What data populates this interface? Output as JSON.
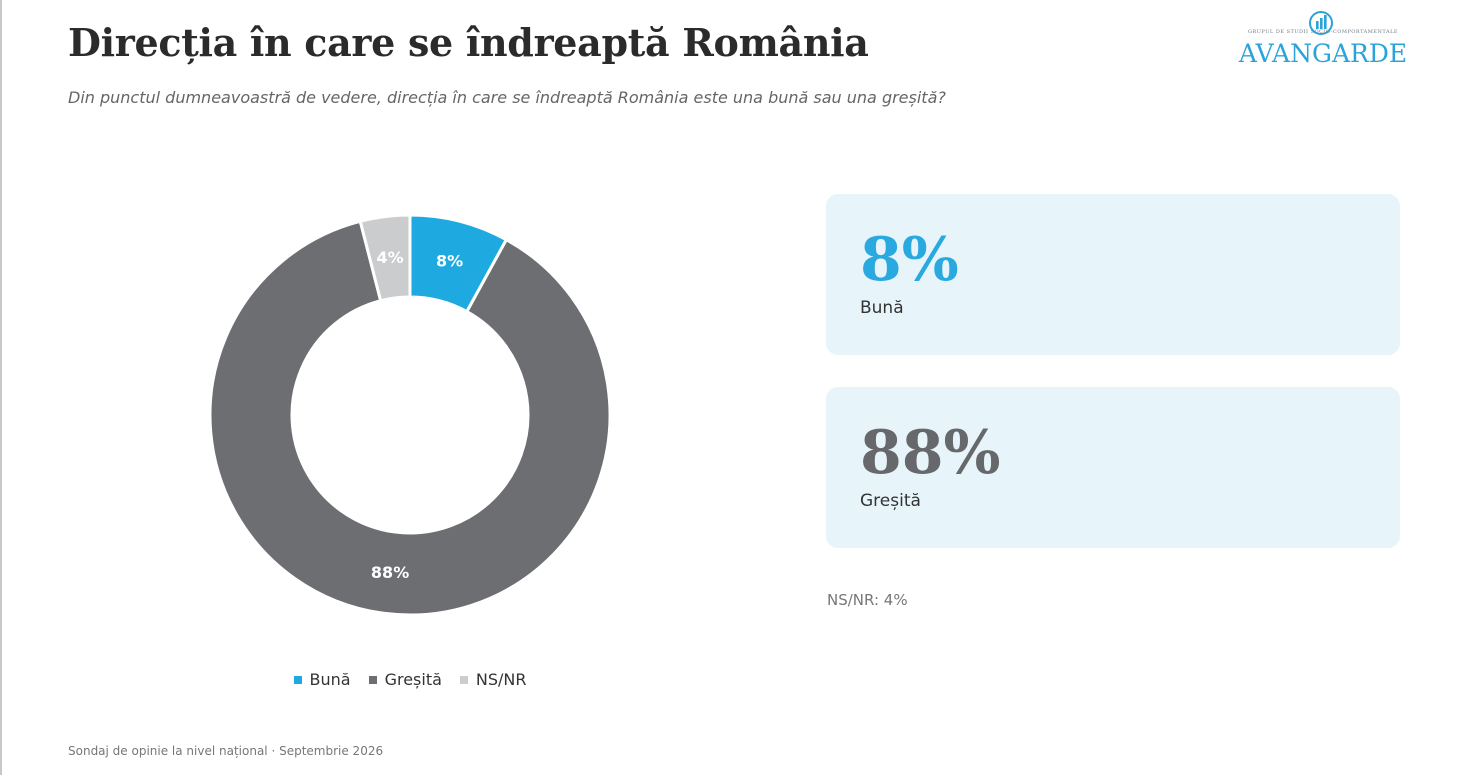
{
  "header": {
    "title": "Direcția în care se îndreaptă România",
    "subtitle": "Din punctul dumneavoastră de vedere, direcția în care se îndreaptă România este una bună sau una greșită?"
  },
  "logo": {
    "wordmark": "AVANGARDE",
    "tagline": "GRUPUL DE STUDII SOCIO-COMPORTAMENTALE",
    "icon": "bar-circle-logo-icon",
    "color": "#2aa3db"
  },
  "chart_data": {
    "type": "pie",
    "variant": "donut",
    "start": "top",
    "direction": "clockwise",
    "categories": [
      "Bună",
      "Greșită",
      "NS/NR"
    ],
    "values": [
      8,
      88,
      4
    ],
    "unit": "%",
    "data_labels": [
      "8%",
      "88%",
      "4%"
    ],
    "colors": [
      "#1eaae1",
      "#6d6e71",
      "#cbcccd"
    ],
    "legend": {
      "placement": "bottom",
      "entries": [
        "Bună",
        "Greșită",
        "NS/NR"
      ]
    }
  },
  "cards": [
    {
      "value": "8%",
      "label": "Bună",
      "color": "#29a9df"
    },
    {
      "value": "88%",
      "label": "Greșită",
      "color": "#67686b"
    }
  ],
  "note": "NS/NR: 4%",
  "footer": "Sondaj de opinie la nivel național · Septembrie 2026"
}
